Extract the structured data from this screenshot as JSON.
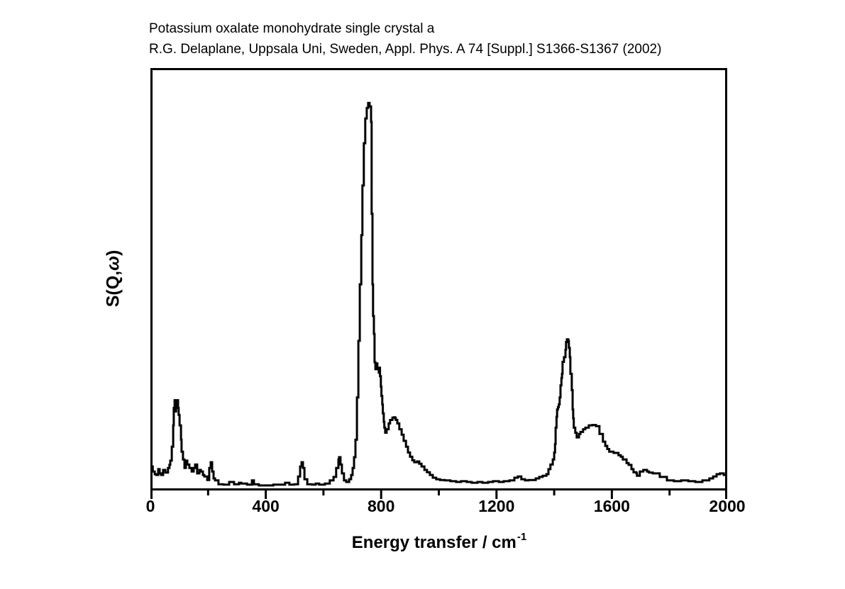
{
  "page": {
    "background_color": "#ffffff",
    "foreground_color": "#000000"
  },
  "header": {
    "line1": "Potassium oxalate monohydrate single crystal a",
    "line2": "R.G. Delaplane, Uppsala Uni, Sweden, Appl. Phys. A 74 [Suppl.] S1366-S1367 (2002)"
  },
  "chart_data": {
    "type": "line",
    "title": "Potassium oxalate monohydrate single crystal a",
    "citation": "R.G. Delaplane, Uppsala Uni, Sweden, Appl. Phys. A 74 [Suppl.] S1366-S1367 (2002)",
    "xlabel": "Energy transfer / cm⁻¹",
    "xlabel_base": "Energy transfer / cm",
    "xlabel_sup": "-1",
    "ylabel": "S(Q,ω)",
    "ylabel_pre": "S(Q,",
    "ylabel_omega": "ω",
    "ylabel_post": ")",
    "xlim": [
      0,
      2000
    ],
    "ylim": [
      0,
      1.09
    ],
    "x_major_ticks": [
      0,
      400,
      800,
      1200,
      1600,
      2000
    ],
    "x_tick_labels": [
      "0",
      "400",
      "800",
      "1200",
      "1600",
      "2000"
    ],
    "x_minor_ticks": [
      200,
      600,
      1000,
      1400,
      1800
    ],
    "y_ticks": [],
    "grid": false,
    "legend": "none",
    "line_color": "#000000",
    "line_width": 3,
    "draw_style": "steps",
    "y_units": "arbitrary (normalized, max peak at 755 cm⁻¹ = 1.0)",
    "series": [
      {
        "name": "S(Q,ω) spectrum",
        "x": [
          2,
          8,
          15,
          20,
          27,
          32,
          37,
          44,
          52,
          61,
          66,
          69,
          74,
          79,
          81,
          84,
          86,
          89,
          93,
          96,
          98,
          101,
          106,
          108,
          113,
          118,
          123,
          128,
          135,
          143,
          150,
          155,
          162,
          170,
          175,
          182,
          187,
          197,
          204,
          209,
          214,
          219,
          224,
          236,
          253,
          273,
          290,
          307,
          315,
          335,
          352,
          359,
          376,
          401,
          426,
          450,
          467,
          482,
          499,
          512,
          519,
          524,
          529,
          534,
          544,
          561,
          573,
          585,
          605,
          622,
          635,
          644,
          652,
          654,
          659,
          664,
          671,
          679,
          689,
          696,
          701,
          706,
          711,
          716,
          721,
          726,
          731,
          735,
          740,
          745,
          750,
          755,
          760,
          765,
          767,
          770,
          772,
          775,
          777,
          780,
          782,
          785,
          787,
          790,
          792,
          794,
          796,
          799,
          801,
          804,
          806,
          809,
          811,
          814,
          819,
          826,
          831,
          839,
          844,
          849,
          851,
          856,
          863,
          871,
          878,
          886,
          893,
          900,
          908,
          915,
          925,
          932,
          940,
          950,
          959,
          969,
          979,
          991,
          1004,
          1021,
          1040,
          1060,
          1077,
          1097,
          1114,
          1134,
          1151,
          1171,
          1188,
          1208,
          1225,
          1245,
          1262,
          1274,
          1286,
          1299,
          1311,
          1323,
          1336,
          1348,
          1360,
          1373,
          1380,
          1387,
          1395,
          1400,
          1403,
          1405,
          1408,
          1410,
          1413,
          1416,
          1419,
          1422,
          1425,
          1427,
          1429,
          1434,
          1439,
          1441,
          1444,
          1449,
          1451,
          1454,
          1456,
          1461,
          1464,
          1466,
          1468,
          1473,
          1478,
          1486,
          1491,
          1500,
          1508,
          1520,
          1532,
          1545,
          1557,
          1569,
          1577,
          1584,
          1591,
          1606,
          1623,
          1631,
          1638,
          1651,
          1658,
          1668,
          1675,
          1685,
          1687,
          1697,
          1709,
          1722,
          1729,
          1742,
          1766,
          1791,
          1815,
          1840,
          1865,
          1889,
          1914,
          1938,
          1951,
          1963,
          1975,
          1988,
          2000
        ],
        "y": [
          0.062,
          0.049,
          0.042,
          0.04,
          0.055,
          0.044,
          0.04,
          0.053,
          0.046,
          0.058,
          0.066,
          0.077,
          0.113,
          0.168,
          0.213,
          0.233,
          0.204,
          0.226,
          0.233,
          0.213,
          0.195,
          0.168,
          0.131,
          0.1,
          0.08,
          0.058,
          0.077,
          0.067,
          0.058,
          0.049,
          0.058,
          0.067,
          0.044,
          0.053,
          0.049,
          0.04,
          0.036,
          0.027,
          0.058,
          0.073,
          0.049,
          0.031,
          0.026,
          0.016,
          0.015,
          0.022,
          0.016,
          0.02,
          0.018,
          0.015,
          0.026,
          0.016,
          0.013,
          0.013,
          0.015,
          0.015,
          0.02,
          0.015,
          0.016,
          0.036,
          0.062,
          0.073,
          0.058,
          0.029,
          0.016,
          0.015,
          0.018,
          0.015,
          0.018,
          0.026,
          0.035,
          0.058,
          0.08,
          0.086,
          0.067,
          0.044,
          0.026,
          0.022,
          0.029,
          0.04,
          0.058,
          0.086,
          0.131,
          0.24,
          0.386,
          0.532,
          0.659,
          0.787,
          0.896,
          0.96,
          0.987,
          1.0,
          0.991,
          0.951,
          0.714,
          0.532,
          0.45,
          0.404,
          0.331,
          0.313,
          0.322,
          0.328,
          0.313,
          0.317,
          0.304,
          0.317,
          0.295,
          0.268,
          0.244,
          0.222,
          0.199,
          0.177,
          0.162,
          0.149,
          0.158,
          0.173,
          0.182,
          0.188,
          0.189,
          0.186,
          0.182,
          0.173,
          0.158,
          0.144,
          0.128,
          0.113,
          0.098,
          0.087,
          0.078,
          0.073,
          0.075,
          0.069,
          0.062,
          0.053,
          0.047,
          0.04,
          0.033,
          0.029,
          0.027,
          0.026,
          0.024,
          0.022,
          0.024,
          0.022,
          0.02,
          0.022,
          0.02,
          0.022,
          0.024,
          0.022,
          0.024,
          0.026,
          0.033,
          0.036,
          0.029,
          0.026,
          0.027,
          0.027,
          0.031,
          0.035,
          0.038,
          0.042,
          0.055,
          0.067,
          0.08,
          0.098,
          0.12,
          0.162,
          0.19,
          0.209,
          0.215,
          0.222,
          0.24,
          0.271,
          0.29,
          0.301,
          0.332,
          0.344,
          0.363,
          0.383,
          0.39,
          0.386,
          0.368,
          0.344,
          0.301,
          0.259,
          0.209,
          0.186,
          0.162,
          0.149,
          0.137,
          0.146,
          0.151,
          0.158,
          0.162,
          0.168,
          0.169,
          0.166,
          0.146,
          0.126,
          0.115,
          0.107,
          0.1,
          0.097,
          0.091,
          0.087,
          0.08,
          0.071,
          0.066,
          0.055,
          0.047,
          0.044,
          0.038,
          0.049,
          0.053,
          0.049,
          0.046,
          0.044,
          0.035,
          0.026,
          0.024,
          0.026,
          0.024,
          0.022,
          0.026,
          0.031,
          0.036,
          0.042,
          0.044,
          0.04,
          0.042
        ]
      }
    ]
  }
}
